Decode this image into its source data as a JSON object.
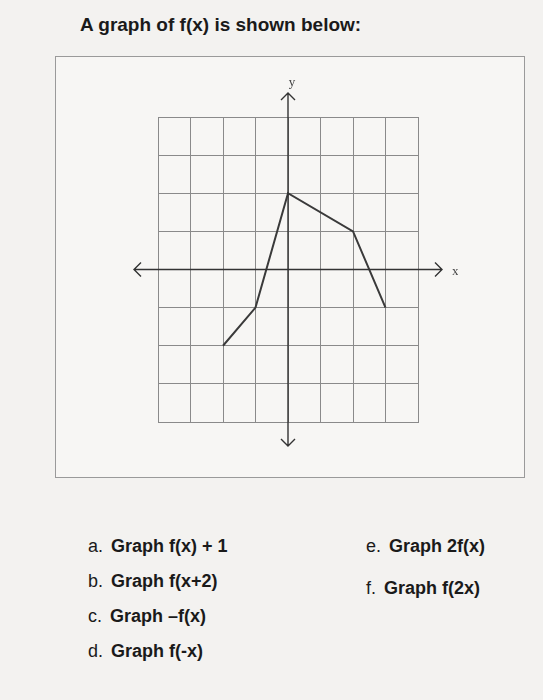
{
  "header": {
    "title": "A graph of f(x) is shown below:"
  },
  "chart_data": {
    "type": "line",
    "x": [
      -2,
      -1,
      0,
      2,
      3
    ],
    "values": [
      -2,
      -1,
      2,
      1,
      -1
    ],
    "color": "#3a3a3a",
    "xlim": [
      -4,
      4
    ],
    "ylim": [
      -4,
      4
    ],
    "xticks": [
      -4,
      -3,
      -2,
      -1,
      0,
      1,
      2,
      3,
      4
    ],
    "yticks": [
      -4,
      -3,
      -2,
      -1,
      0,
      1,
      2,
      3,
      4
    ],
    "grid": true,
    "tick_labels": false,
    "x_label": "x",
    "y_label": "y"
  },
  "tasks": {
    "left": [
      {
        "label": "a.",
        "text": "Graph f(x) + 1"
      },
      {
        "label": "b.",
        "text": "Graph f(x+2)"
      },
      {
        "label": "c.",
        "text": "Graph –f(x)"
      },
      {
        "label": "d.",
        "text": "Graph f(-x)"
      }
    ],
    "right": [
      {
        "label": "e.",
        "text": "Graph 2f(x)"
      },
      {
        "label": "f.",
        "text": "Graph f(2x)"
      }
    ]
  }
}
